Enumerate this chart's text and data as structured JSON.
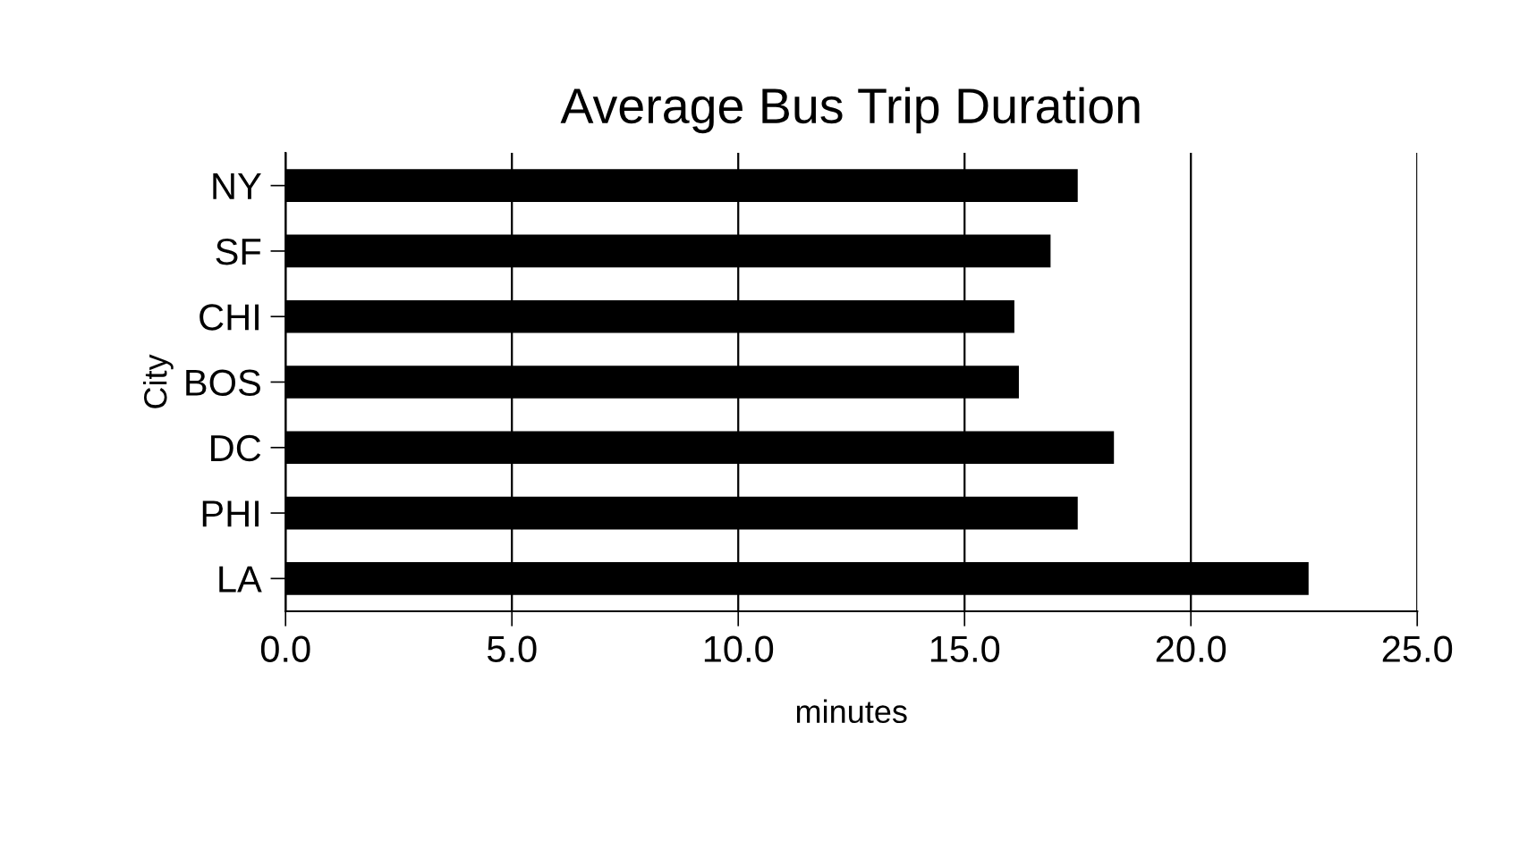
{
  "chart_data": {
    "type": "bar",
    "orientation": "horizontal",
    "title": "Average Bus Trip Duration",
    "xlabel": "minutes",
    "ylabel": "City",
    "categories": [
      "NY",
      "SF",
      "CHI",
      "BOS",
      "DC",
      "PHI",
      "LA"
    ],
    "values": [
      17.5,
      16.9,
      16.1,
      16.2,
      18.3,
      17.5,
      22.6
    ],
    "color": "#000000",
    "xlim": [
      0,
      25
    ],
    "xticks": [
      {
        "value": 0,
        "label": "0.0"
      },
      {
        "value": 5,
        "label": "5.0"
      },
      {
        "value": 10,
        "label": "10.0"
      },
      {
        "value": 15,
        "label": "15.0"
      },
      {
        "value": 20,
        "label": "20.0"
      },
      {
        "value": 25,
        "label": "25.0"
      }
    ],
    "grid": "x",
    "legend": false
  }
}
